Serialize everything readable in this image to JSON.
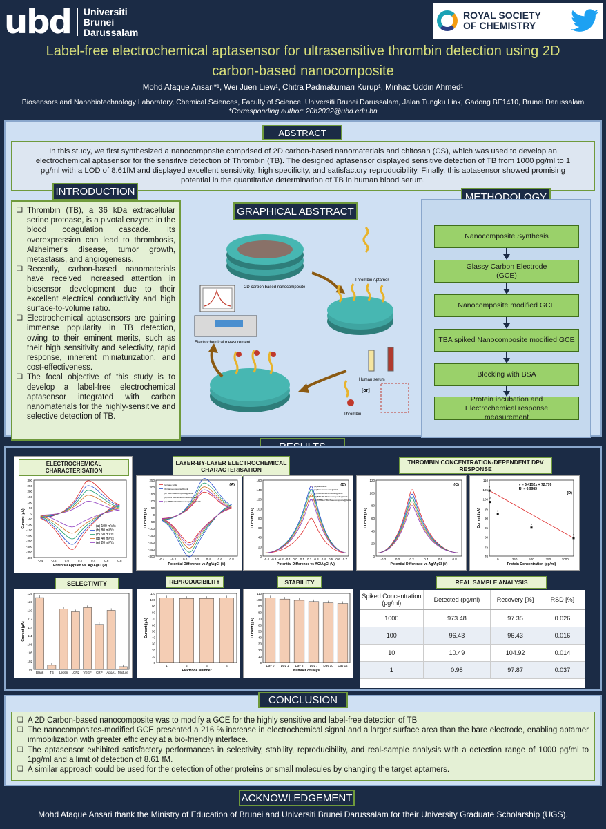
{
  "header": {
    "ubd_mark": "ubd",
    "ubd_lines": [
      "Universiti",
      "Brunei",
      "Darussalam"
    ],
    "rsc_lines": [
      "ROYAL SOCIETY",
      "OF CHEMISTRY"
    ],
    "title_line1": "Label-free electrochemical aptasensor for ultrasensitive thrombin detection using 2D",
    "title_line2": "carbon-based nanocomposite",
    "authors": "Mohd Afaque Ansari*¹, Wei Juen Liew¹, Chitra Padmakumari Kurup¹, Minhaz Uddin Ahmed¹",
    "affiliation": "Biosensors and Nanobiotechnology Laboratory, Chemical Sciences, Faculty of Science, Universiti Brunei Darussalam, Jalan Tungku Link, Gadong BE1410, Brunei Darussalam",
    "corresponding": "*Corresponding author: 20h2032@ubd.edu.bn"
  },
  "abstract": {
    "title": "ABSTRACT",
    "text": "In this study, we first synthesized a nanocomposite comprised of 2D carbon-based nanomaterials and chitosan (CS), which was used to develop an electrochemical aptasensor for the sensitive detection of Thrombin (TB). The designed aptasensor displayed sensitive detection of TB from 1000 pg/ml to 1 pg/ml with a LOD of 8.61fM and displayed excellent sensitivity, high specificity, and satisfactory reproducibility. Finally, this aptasensor showed promising potential in the quantitative determination of TB in human blood serum."
  },
  "introduction": {
    "title": "INTRODUCTION",
    "items": [
      "Thrombin (TB), a 36 kDa extracellular serine protease, is a pivotal enzyme in the blood coagulation cascade. Its overexpression can lead to thrombosis, Alzheimer's disease, tumor growth, metastasis, and angiogenesis.",
      "Recently, carbon-based nanomaterials have received increased attention in biosensor development due to their excellent electrical conductivity and high surface-to-volume ratio.",
      "Electrochemical aptasensors are gaining immense popularity in TB detection, owing to their eminent merits, such as their high sensitivity and selectivity, rapid response, inherent miniaturization, and cost-effectiveness.",
      "The focal objective of this study is to develop a label-free electrochemical aptasensor integrated with carbon nanomaterials for the highly-sensitive and selective detection of TB."
    ]
  },
  "graphical_abstract": {
    "title": "GRAPHICAL ABSTRACT",
    "label_nanocomposite": "2D-carbon based nanocomposite",
    "label_aptamer": "Thrombin Aptamer",
    "label_measurement": "Electrochemical measurement",
    "label_serum": "Human serum",
    "label_or": "[or]",
    "label_thrombin": "Thrombin"
  },
  "methodology": {
    "title": "METHODOLOGY",
    "steps": [
      "Nanocomposite Synthesis",
      "Glassy Carbon Electrode (GCE)",
      "Nanocomposite modified GCE",
      "TBA spiked Nanocomposite modified GCE",
      "Blocking with BSA",
      "Protein incubation and Electrochemical response measurement"
    ]
  },
  "results": {
    "title": "RESULTS",
    "label_echem": "ELECTROCHEMICAL CHARACTERISATION",
    "label_lbl": "LAYER-BY-LAYER ELECTROCHEMICAL CHARACTERISATION",
    "label_dpv": "THROMBIN CONCENTRATION-DEPENDENT DPV RESPONSE",
    "label_selectivity": "SELECTIVITY",
    "label_repro": "REPRODUCIBILITY",
    "label_stability": "STABILITY",
    "label_real": "REAL SAMPLE ANALYSIS"
  },
  "charts": {
    "cv_scan": {
      "xlabel": "Potential Applied vs. Ag/AgCl (V)",
      "ylabel": "Current (µA)",
      "xticks": [
        "-0.4",
        "-0.2",
        "0.0",
        "0.2",
        "0.4",
        "0.6",
        "0.8"
      ],
      "yticks": [
        "300",
        "250",
        "200",
        "150",
        "100",
        "50",
        "0",
        "-50",
        "-100",
        "-150",
        "-200",
        "-250",
        "-300",
        "-350",
        "-400"
      ],
      "legend": [
        "(a)  100 mV/s",
        "(b)  80 mV/s",
        "(c)  60 mV/s",
        "(d)  40 mV/s",
        "(e)  20 mV/s"
      ]
    },
    "cv_lbl": {
      "tag": "(A)",
      "xlabel": "Potential Difference vs Ag/AgCl (V)",
      "ylabel": "Current (µA)",
      "xticks": [
        "-0.4",
        "-0.2",
        "0.0",
        "0.2",
        "0.4",
        "0.6",
        "0.8"
      ],
      "yticks": [
        "250",
        "200",
        "150",
        "100",
        "50",
        "0",
        "-50",
        "-100",
        "-150",
        "-200",
        "-250",
        "-300"
      ],
      "legend": [
        "(a)  Bare GCE",
        "(b)  Nanocomposite@GCE",
        "(c)  TBA/Nanocomposite@GCE",
        "(d)  BSA/TBA/Nanocomposite@GCE",
        "(e)  TB/BSA/TBA/Nanocomposite@GCE"
      ]
    },
    "dpv_lbl": {
      "tag": "(B)",
      "xlabel": "Potential Difference vs AG/AgCl (V)",
      "ylabel": "Current (µA)",
      "xticks": [
        "-0.4",
        "-0.3",
        "-0.2",
        "-0.1",
        "0.0",
        "0.1",
        "0.2",
        "0.3",
        "0.4",
        "0.5",
        "0.6",
        "0.7"
      ],
      "yticks": [
        "160",
        "140",
        "120",
        "100",
        "80",
        "60",
        "40",
        "20",
        "0"
      ],
      "legend": [
        "(a)  Bare GCE",
        "(b)  Nanocomposite@GCE",
        "(c)  TBA/Nanocomposite@GCE",
        "(d)  BSA/TBA/Nanocomposite@GCE",
        "(e)  TB/BSA/TBA/Nanocomposite@GCE"
      ]
    },
    "dpv_conc": {
      "tag": "(C)",
      "xlabel": "Potential Difference vs Ag/AgCl (V)",
      "ylabel": "Current (µA)",
      "xticks": [
        "-0.2",
        "0.0",
        "0.2",
        "0.4",
        "0.6",
        "0.8"
      ],
      "yticks": [
        "120",
        "100",
        "80",
        "60",
        "40",
        "20",
        "0"
      ]
    },
    "calib": {
      "tag": "(D)",
      "equation": "y = 6.4152x + 72.776",
      "r2": "R² = 0.9983",
      "xlabel": "Protein Concentration (pg/ml)",
      "ylabel": "Current (µA)",
      "xticks": [
        "0",
        "250",
        "500",
        "750",
        "1000"
      ],
      "yticks": [
        "110",
        "105",
        "100",
        "95",
        "90",
        "85",
        "80",
        "75",
        "70"
      ],
      "point_labels": [
        "e",
        "d",
        "c",
        "b",
        "a"
      ]
    },
    "selectivity": {
      "ylabel": "Current (µA)",
      "yticks": [
        "126",
        "123",
        "120",
        "117",
        "114",
        "111",
        "108",
        "105",
        "102",
        "99"
      ],
      "categories": [
        "Blank",
        "TB",
        "Leptin",
        "LCN2",
        "VEGF",
        "CRP",
        "ApoA1",
        "Mixture"
      ]
    },
    "reproducibility": {
      "xlabel": "Electrode Number",
      "ylabel": "Current (µA)",
      "yticks": [
        "110",
        "100",
        "90",
        "80",
        "70",
        "60",
        "50",
        "40",
        "30",
        "20",
        "10",
        "0"
      ],
      "categories": [
        "1",
        "2",
        "3",
        "4"
      ]
    },
    "stability": {
      "xlabel": "Number of Days",
      "ylabel": "Current (µA)",
      "yticks": [
        "110",
        "100",
        "90",
        "80",
        "70",
        "60",
        "50",
        "40",
        "30",
        "20",
        "10",
        "0"
      ],
      "categories": [
        "Day 0",
        "Day 1",
        "Day 3",
        "Day 7",
        "Day 10",
        "Day 14"
      ]
    }
  },
  "chart_data": [
    {
      "type": "line",
      "title": "ELECTROCHEMICAL CHARACTERISATION",
      "xlabel": "Potential Applied vs. Ag/AgCl (V)",
      "ylabel": "Current (µA)",
      "xlim": [
        -0.5,
        0.9
      ],
      "ylim": [
        -400,
        300
      ],
      "series": [
        {
          "name": "100 mV/s",
          "peak_anodic": 270,
          "peak_cathodic": -290
        },
        {
          "name": "80 mV/s",
          "peak_anodic": 230,
          "peak_cathodic": -250
        },
        {
          "name": "60 mV/s",
          "peak_anodic": 190,
          "peak_cathodic": -205
        },
        {
          "name": "40 mV/s",
          "peak_anodic": 150,
          "peak_cathodic": -160
        },
        {
          "name": "20 mV/s",
          "peak_anodic": 100,
          "peak_cathodic": -110
        }
      ]
    },
    {
      "type": "line",
      "title": "LAYER-BY-LAYER ELECTROCHEMICAL CHARACTERISATION",
      "xlabel": "Potential Difference vs Ag/AgCl (V)",
      "ylabel": "Current (µA)",
      "xlim": [
        -0.5,
        0.9
      ],
      "ylim": [
        -300,
        250
      ],
      "series": [
        {
          "name": "Bare GCE",
          "peak_anodic": 150,
          "peak_cathodic": -180
        },
        {
          "name": "Nanocomposite@GCE",
          "peak_anodic": 240,
          "peak_cathodic": -270
        },
        {
          "name": "TBA/Nanocomposite@GCE",
          "peak_anodic": 210,
          "peak_cathodic": -240
        },
        {
          "name": "BSA/TBA/Nanocomposite@GCE",
          "peak_anodic": 185,
          "peak_cathodic": -215
        },
        {
          "name": "TB/BSA/TBA/Nanocomposite@GCE",
          "peak_anodic": 165,
          "peak_cathodic": -195
        }
      ]
    },
    {
      "type": "line",
      "xlabel": "Potential Difference vs AG/AgCl (V)",
      "ylabel": "Current (µA)",
      "xlim": [
        -0.4,
        0.7
      ],
      "ylim": [
        0,
        160
      ],
      "series": [
        {
          "name": "Bare GCE",
          "peak": 80
        },
        {
          "name": "Nanocomposite@GCE",
          "peak": 148
        },
        {
          "name": "TBA/Nanocomposite@GCE",
          "peak": 140
        },
        {
          "name": "BSA/TBA/Nanocomposite@GCE",
          "peak": 130
        },
        {
          "name": "TB/BSA/TBA/Nanocomposite@GCE",
          "peak": 120
        }
      ]
    },
    {
      "type": "line",
      "title": "THROMBIN CONCENTRATION-DEPENDENT DPV RESPONSE",
      "xlabel": "Potential Difference vs Ag/AgCl (V)",
      "ylabel": "Current (µA)",
      "xlim": [
        -0.2,
        0.8
      ],
      "ylim": [
        0,
        120
      ],
      "peaks": [
        105,
        98,
        92,
        86,
        80
      ]
    },
    {
      "type": "scatter",
      "xlabel": "Protein Concentration (pg/ml)",
      "ylabel": "Current (µA)",
      "x": [
        1,
        10,
        100,
        500,
        1000
      ],
      "y": [
        104.5,
        98.5,
        92,
        85,
        79.5
      ],
      "xlim": [
        0,
        1000
      ],
      "ylim": [
        70,
        110
      ]
    },
    {
      "type": "bar",
      "title": "SELECTIVITY",
      "categories": [
        "Blank",
        "TB",
        "Leptin",
        "LCN2",
        "VEGF",
        "CRP",
        "ApoA1",
        "Mixture"
      ],
      "values": [
        124.5,
        100.5,
        120.5,
        119.5,
        121,
        115,
        120,
        100
      ],
      "ylim": [
        99,
        126
      ],
      "ylabel": "Current (µA)"
    },
    {
      "type": "bar",
      "title": "REPRODUCIBILITY",
      "categories": [
        "1",
        "2",
        "3",
        "4"
      ],
      "values": [
        103,
        102,
        102,
        103
      ],
      "ylim": [
        0,
        110
      ],
      "ylabel": "Current (µA)",
      "xlabel": "Electrode Number"
    },
    {
      "type": "bar",
      "title": "STABILITY",
      "categories": [
        "Day 0",
        "Day 1",
        "Day 3",
        "Day 7",
        "Day 10",
        "Day 14"
      ],
      "values": [
        103,
        101,
        99,
        97,
        95,
        94
      ],
      "ylim": [
        0,
        110
      ],
      "ylabel": "Current (µA)",
      "xlabel": "Number of Days"
    }
  ],
  "real_sample": {
    "headers": [
      "Spiked Concentration (pg/ml)",
      "Detected (pg/ml)",
      "Recovery [%]",
      "RSD [%]"
    ],
    "rows": [
      [
        "1000",
        "973.48",
        "97.35",
        "0.026"
      ],
      [
        "100",
        "96.43",
        "96.43",
        "0.016"
      ],
      [
        "10",
        "10.49",
        "104.92",
        "0.014"
      ],
      [
        "1",
        "0.98",
        "97.87",
        "0.037"
      ]
    ]
  },
  "conclusion": {
    "title": "CONCLUSION",
    "items": [
      "A 2D Carbon-based nanocomposite was to modify a GCE for the highly sensitive and label-free detection of TB",
      "The nanocomposites-modified GCE presented a 216 % increase in electrochemical signal and a larger surface area than the bare electrode, enabling aptamer immobilization with greater efficiency at a bio-friendly interface.",
      "The aptasensor exhibited satisfactory performances in selectivity, stability, reproducibility, and real-sample analysis with a detection range of 1000 pg/ml to 1pg/ml and a limit of detection of 8.61 fM.",
      "A similar approach could be used for the detection of other proteins or small molecules by changing the target aptamers."
    ]
  },
  "acknowledgement": {
    "title": "ACKNOWLEDGEMENT",
    "text": "Mohd Afaque Ansari thank the Ministry of Education of Brunei and Universiti Brunei Darussalam for their University Graduate Scholarship (UGS)."
  },
  "icons": {
    "ubd": "ubd-logo",
    "rsc": "rsc-logo",
    "twitter": "twitter-icon"
  }
}
